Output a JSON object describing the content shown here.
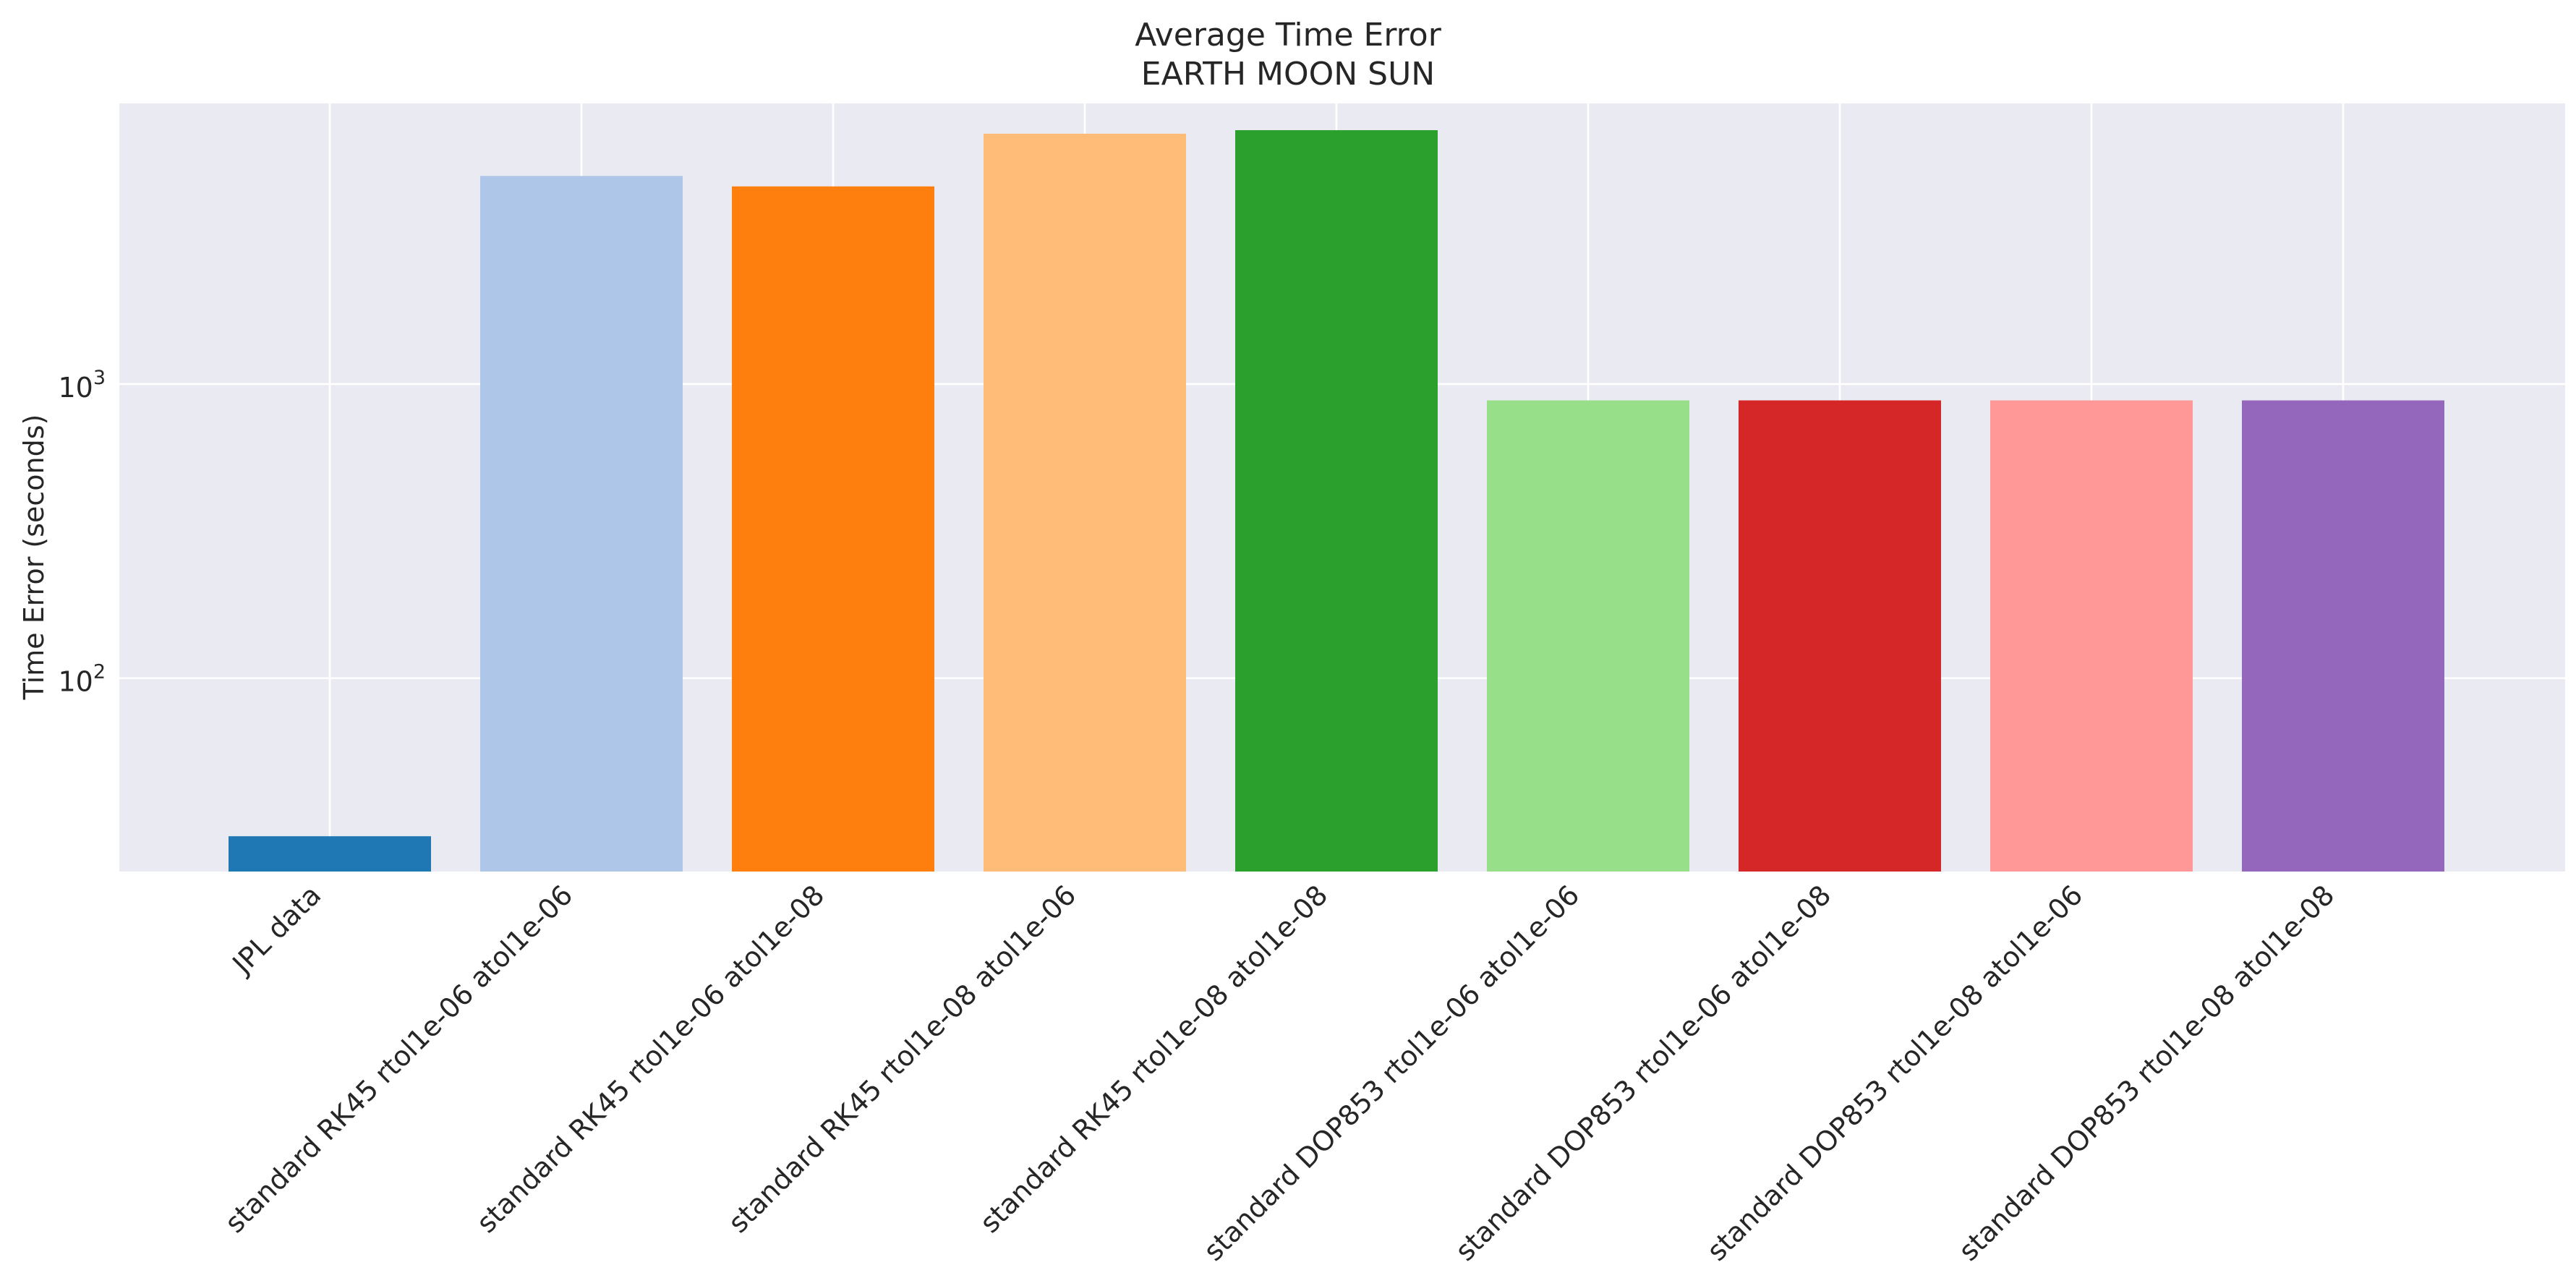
{
  "chart_data": {
    "type": "bar",
    "title": "Average Time Error",
    "subtitle": "EARTH MOON SUN",
    "xlabel": "",
    "ylabel": "Time Error (seconds)",
    "yscale": "log",
    "ylim": [
      22,
      9000
    ],
    "y_ticks": [
      {
        "value": 100,
        "base": "10",
        "exp": "2"
      },
      {
        "value": 1000,
        "base": "10",
        "exp": "3"
      }
    ],
    "grid": true,
    "categories": [
      "JPL data",
      "standard RK45 rtol1e-06 atol1e-06",
      "standard RK45 rtol1e-06 atol1e-08",
      "standard RK45 rtol1e-08 atol1e-06",
      "standard RK45 rtol1e-08 atol1e-08",
      "standard DOP853 rtol1e-06 atol1e-06",
      "standard DOP853 rtol1e-06 atol1e-08",
      "standard DOP853 rtol1e-08 atol1e-06",
      "standard DOP853 rtol1e-08 atol1e-08"
    ],
    "values": [
      29,
      5100,
      4700,
      7100,
      7300,
      880,
      880,
      880,
      880
    ],
    "colors": [
      "#1f77b4",
      "#aec7e8",
      "#ff7f0e",
      "#ffbb78",
      "#2ca02c",
      "#98df8a",
      "#d62728",
      "#ff9896",
      "#9467bd"
    ],
    "background_color": "#eaeaf2",
    "grid_color": "#ffffff"
  }
}
